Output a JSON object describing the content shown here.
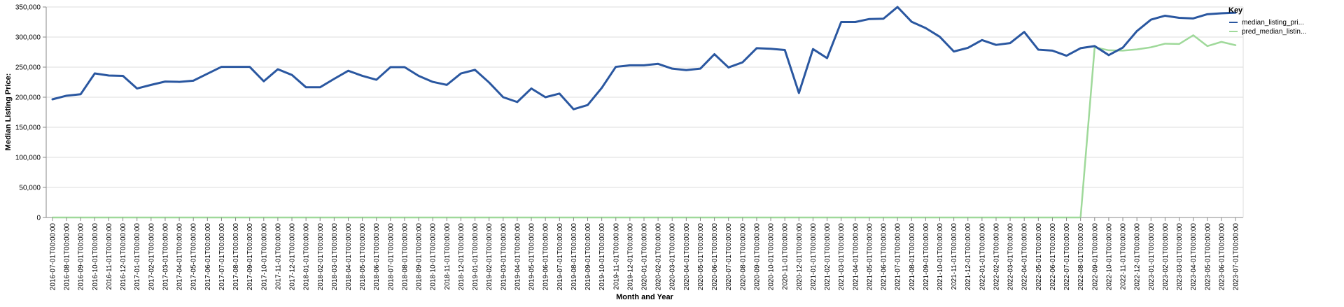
{
  "chart_data": {
    "type": "line",
    "xlabel": "Month and Year",
    "ylabel": "Median Listing Price:",
    "ylim": [
      0,
      350000
    ],
    "y_ticks": [
      "0",
      "50,000",
      "100,000",
      "150,000",
      "200,000",
      "250,000",
      "300,000",
      "350,000"
    ],
    "grid": true,
    "legend_title": "Key",
    "legend_placement": "right",
    "categories": [
      "2016-07-01T00:00:00",
      "2016-08-01T00:00:00",
      "2016-09-01T00:00:00",
      "2016-10-01T00:00:00",
      "2016-11-01T00:00:00",
      "2016-12-01T00:00:00",
      "2017-01-01T00:00:00",
      "2017-02-01T00:00:00",
      "2017-03-01T00:00:00",
      "2017-04-01T00:00:00",
      "2017-05-01T00:00:00",
      "2017-06-01T00:00:00",
      "2017-07-01T00:00:00",
      "2017-08-01T00:00:00",
      "2017-09-01T00:00:00",
      "2017-10-01T00:00:00",
      "2017-11-01T00:00:00",
      "2017-12-01T00:00:00",
      "2018-01-01T00:00:00",
      "2018-02-01T00:00:00",
      "2018-03-01T00:00:00",
      "2018-04-01T00:00:00",
      "2018-05-01T00:00:00",
      "2018-06-01T00:00:00",
      "2018-07-01T00:00:00",
      "2018-08-01T00:00:00",
      "2018-09-01T00:00:00",
      "2018-10-01T00:00:00",
      "2018-11-01T00:00:00",
      "2018-12-01T00:00:00",
      "2019-01-01T00:00:00",
      "2019-02-01T00:00:00",
      "2019-03-01T00:00:00",
      "2019-04-01T00:00:00",
      "2019-05-01T00:00:00",
      "2019-06-01T00:00:00",
      "2019-07-01T00:00:00",
      "2019-08-01T00:00:00",
      "2019-09-01T00:00:00",
      "2019-10-01T00:00:00",
      "2019-11-01T00:00:00",
      "2019-12-01T00:00:00",
      "2020-01-01T00:00:00",
      "2020-02-01T00:00:00",
      "2020-03-01T00:00:00",
      "2020-04-01T00:00:00",
      "2020-05-01T00:00:00",
      "2020-06-01T00:00:00",
      "2020-07-01T00:00:00",
      "2020-08-01T00:00:00",
      "2020-09-01T00:00:00",
      "2020-10-01T00:00:00",
      "2020-11-01T00:00:00",
      "2020-12-01T00:00:00",
      "2021-01-01T00:00:00",
      "2021-02-01T00:00:00",
      "2021-03-01T00:00:00",
      "2021-04-01T00:00:00",
      "2021-05-01T00:00:00",
      "2021-06-01T00:00:00",
      "2021-07-01T00:00:00",
      "2021-08-01T00:00:00",
      "2021-09-01T00:00:00",
      "2021-10-01T00:00:00",
      "2021-11-01T00:00:00",
      "2021-12-01T00:00:00",
      "2022-01-01T00:00:00",
      "2022-02-01T00:00:00",
      "2022-03-01T00:00:00",
      "2022-04-01T00:00:00",
      "2022-05-01T00:00:00",
      "2022-06-01T00:00:00",
      "2022-07-01T00:00:00",
      "2022-08-01T00:00:00",
      "2022-09-01T00:00:00",
      "2022-10-01T00:00:00",
      "2022-11-01T00:00:00",
      "2022-12-01T00:00:00",
      "2023-01-01T00:00:00",
      "2023-02-01T00:00:00",
      "2023-03-01T00:00:00",
      "2023-04-01T00:00:00",
      "2023-05-01T00:00:00",
      "2023-06-01T00:00:00",
      "2023-07-01T00:00:00"
    ],
    "series": [
      {
        "name": "median_listing_pri...",
        "color": "#2a57a0",
        "values": [
          196500,
          202500,
          205000,
          239500,
          236000,
          235500,
          214500,
          220500,
          226000,
          225500,
          227500,
          239000,
          250500,
          250500,
          250500,
          226500,
          246500,
          237000,
          216500,
          216500,
          230500,
          244000,
          235500,
          229000,
          250000,
          250000,
          235500,
          225500,
          220500,
          239500,
          245500,
          224500,
          200000,
          192000,
          214500,
          200000,
          206000,
          180000,
          187000,
          215500,
          250500,
          253000,
          253000,
          255500,
          247500,
          245000,
          247500,
          271500,
          249500,
          258000,
          281500,
          280500,
          278500,
          207000,
          280000,
          265000,
          325000,
          325000,
          330000,
          330500,
          350000,
          325500,
          315000,
          300500,
          276000,
          282000,
          295000,
          287000,
          290000,
          308500,
          279000,
          277500,
          269000,
          281500,
          285000,
          270000,
          282500,
          310000,
          329000,
          335500,
          332000,
          331000,
          338000,
          339500,
          340500
        ]
      },
      {
        "name": "pred_median_listin...",
        "color": "#9fd99a",
        "values": [
          0,
          0,
          0,
          0,
          0,
          0,
          0,
          0,
          0,
          0,
          0,
          0,
          0,
          0,
          0,
          0,
          0,
          0,
          0,
          0,
          0,
          0,
          0,
          0,
          0,
          0,
          0,
          0,
          0,
          0,
          0,
          0,
          0,
          0,
          0,
          0,
          0,
          0,
          0,
          0,
          0,
          0,
          0,
          0,
          0,
          0,
          0,
          0,
          0,
          0,
          0,
          0,
          0,
          0,
          0,
          0,
          0,
          0,
          0,
          0,
          0,
          0,
          0,
          0,
          0,
          0,
          0,
          0,
          0,
          0,
          0,
          0,
          0,
          0,
          283000,
          278000,
          277500,
          279500,
          283000,
          289000,
          288500,
          303000,
          285000,
          292000,
          286500
        ]
      }
    ]
  }
}
